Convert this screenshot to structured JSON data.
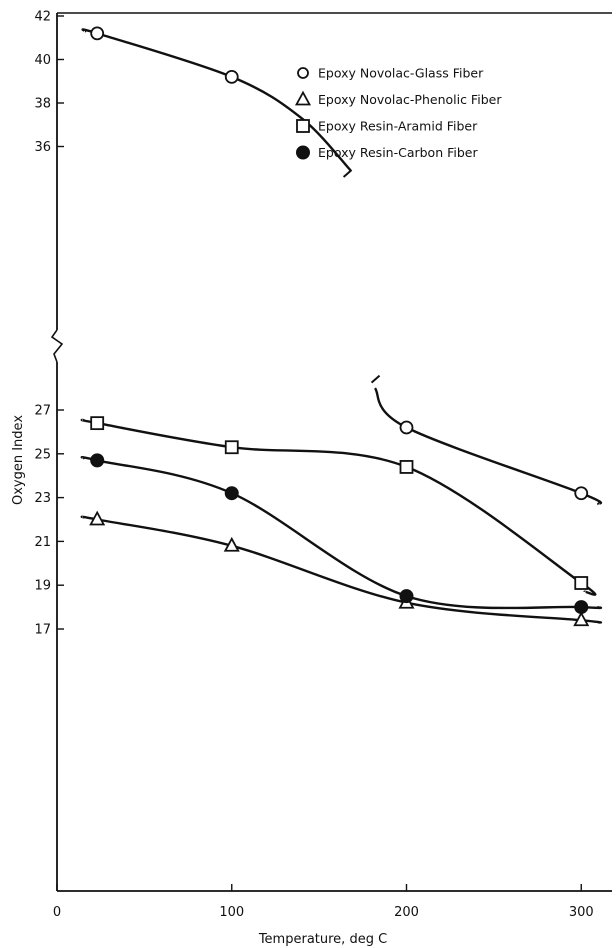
{
  "chart_data": {
    "type": "line",
    "title": "",
    "xlabel": "Temperature, deg C",
    "ylabel": "Oxygen Index",
    "xlim": [
      0,
      320
    ],
    "ylim": [
      16,
      42
    ],
    "axis_break": {
      "lower_top": 28,
      "upper_bottom": 34
    },
    "x_ticks": [
      0,
      100,
      200,
      300
    ],
    "y_ticks": [
      17,
      19,
      21,
      23,
      25,
      27,
      36,
      38,
      40,
      42
    ],
    "grid": false,
    "legend": {
      "position": "top-right"
    },
    "series": [
      {
        "name": "Epoxy Novolac-Glass Fiber",
        "marker": "open-circle",
        "x": [
          23,
          100,
          200,
          300
        ],
        "y": [
          41.2,
          39.2,
          26.2,
          23.2
        ]
      },
      {
        "name": "Epoxy Novolac-Phenolic Fiber",
        "marker": "open-triangle",
        "x": [
          23,
          100,
          200,
          300
        ],
        "y": [
          22.0,
          20.8,
          18.2,
          17.4
        ]
      },
      {
        "name": "Epoxy Resin-Aramid Fiber",
        "marker": "open-square",
        "x": [
          23,
          100,
          200,
          300
        ],
        "y": [
          26.4,
          25.3,
          24.4,
          19.1
        ]
      },
      {
        "name": "Epoxy Resin-Carbon Fiber",
        "marker": "filled-circle",
        "x": [
          23,
          100,
          200,
          300
        ],
        "y": [
          24.7,
          23.2,
          18.5,
          18.0
        ]
      }
    ]
  }
}
